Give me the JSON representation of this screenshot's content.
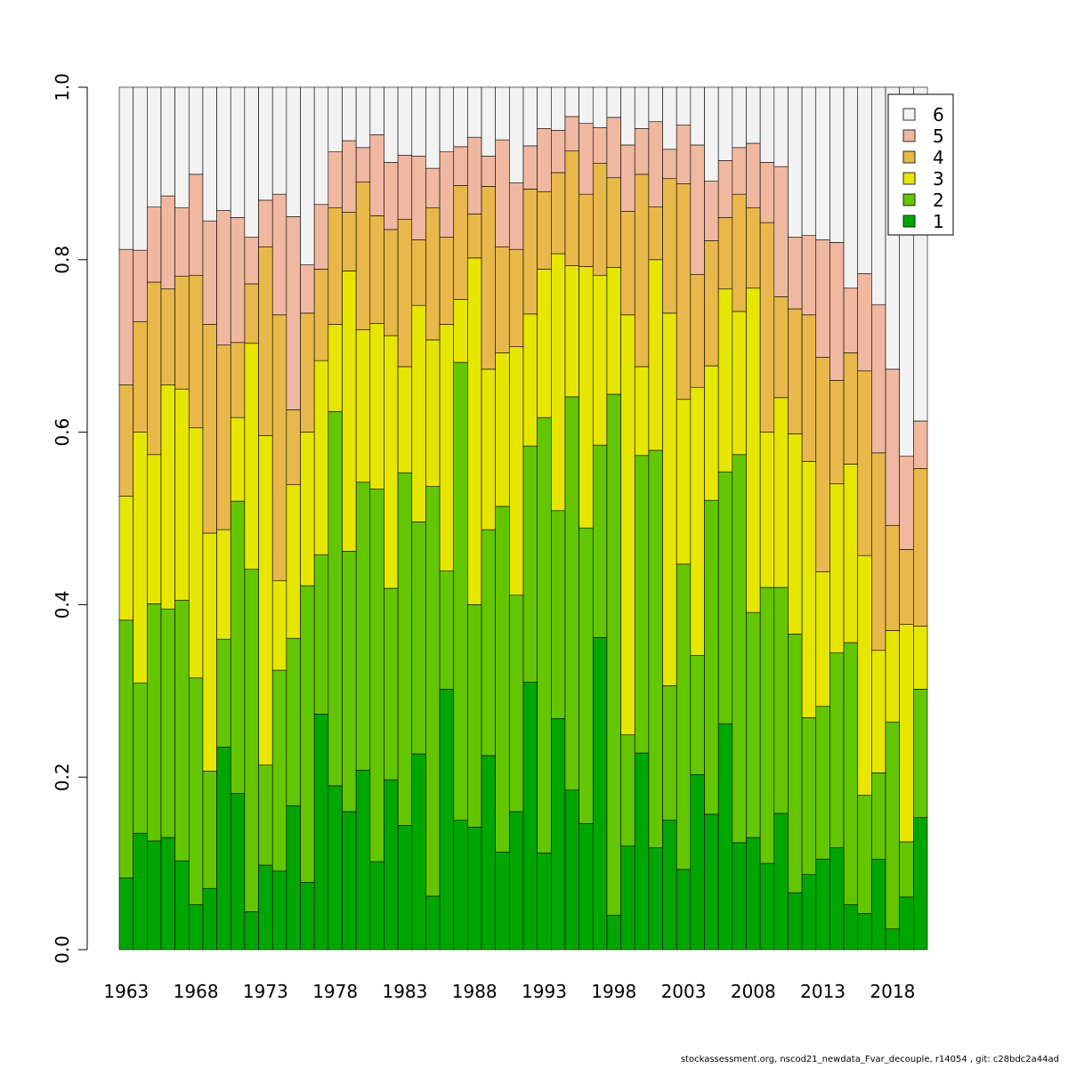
{
  "chart_data": {
    "type": "bar",
    "stacked": true,
    "title": "",
    "xlabel": "",
    "ylabel": "",
    "ylim": [
      0,
      1
    ],
    "y_ticks": [
      0.0,
      0.2,
      0.4,
      0.6,
      0.8,
      1.0
    ],
    "y_tick_labels": [
      "0.0",
      "0.2",
      "0.4",
      "0.6",
      "0.8",
      "1.0"
    ],
    "x_tick_labels": [
      "1963",
      "1968",
      "1973",
      "1978",
      "1983",
      "1988",
      "1993",
      "1998",
      "2003",
      "2008",
      "2013",
      "2018"
    ],
    "legend_position": "top-right",
    "legend_order": [
      "6",
      "5",
      "4",
      "3",
      "2",
      "1"
    ],
    "categories": [
      "1963",
      "1964",
      "1965",
      "1966",
      "1967",
      "1968",
      "1969",
      "1970",
      "1971",
      "1972",
      "1973",
      "1974",
      "1975",
      "1976",
      "1977",
      "1978",
      "1979",
      "1980",
      "1981",
      "1982",
      "1983",
      "1984",
      "1985",
      "1986",
      "1987",
      "1988",
      "1989",
      "1990",
      "1991",
      "1992",
      "1993",
      "1994",
      "1995",
      "1996",
      "1997",
      "1998",
      "1999",
      "2000",
      "2001",
      "2002",
      "2003",
      "2004",
      "2005",
      "2006",
      "2007",
      "2008",
      "2009",
      "2010",
      "2011",
      "2012",
      "2013",
      "2014",
      "2015",
      "2016",
      "2017",
      "2018",
      "2019",
      "2020"
    ],
    "series": [
      {
        "name": "1",
        "color": "#00a600",
        "values": [
          0.083,
          0.135,
          0.126,
          0.13,
          0.103,
          0.052,
          0.071,
          0.235,
          0.181,
          0.044,
          0.098,
          0.091,
          0.167,
          0.078,
          0.273,
          0.19,
          0.16,
          0.208,
          0.102,
          0.197,
          0.144,
          0.227,
          0.062,
          0.302,
          0.15,
          0.142,
          0.225,
          0.113,
          0.16,
          0.31,
          0.112,
          0.268,
          0.185,
          0.146,
          0.362,
          0.04,
          0.12,
          0.228,
          0.118,
          0.15,
          0.093,
          0.203,
          0.157,
          0.262,
          0.124,
          0.13,
          0.1,
          0.158,
          0.066,
          0.087,
          0.105,
          0.118,
          0.052,
          0.042,
          0.105,
          0.024,
          0.061,
          0.153
        ]
      },
      {
        "name": "2",
        "color": "#63c600",
        "values": [
          0.299,
          0.174,
          0.275,
          0.265,
          0.302,
          0.263,
          0.136,
          0.125,
          0.339,
          0.397,
          0.116,
          0.233,
          0.194,
          0.344,
          0.185,
          0.434,
          0.302,
          0.334,
          0.432,
          0.222,
          0.409,
          0.269,
          0.475,
          0.137,
          0.531,
          0.258,
          0.262,
          0.401,
          0.251,
          0.274,
          0.505,
          0.241,
          0.456,
          0.343,
          0.223,
          0.604,
          0.129,
          0.345,
          0.461,
          0.156,
          0.354,
          0.138,
          0.364,
          0.292,
          0.45,
          0.261,
          0.32,
          0.262,
          0.3,
          0.182,
          0.177,
          0.226,
          0.304,
          0.137,
          0.1,
          0.24,
          0.064,
          0.149
        ]
      },
      {
        "name": "3",
        "color": "#e6e600",
        "values": [
          0.144,
          0.291,
          0.173,
          0.26,
          0.245,
          0.29,
          0.276,
          0.127,
          0.097,
          0.262,
          0.382,
          0.104,
          0.178,
          0.178,
          0.225,
          0.101,
          0.325,
          0.177,
          0.192,
          0.293,
          0.123,
          0.251,
          0.17,
          0.286,
          0.073,
          0.402,
          0.186,
          0.178,
          0.288,
          0.153,
          0.172,
          0.298,
          0.152,
          0.303,
          0.197,
          0.147,
          0.487,
          0.103,
          0.221,
          0.432,
          0.191,
          0.311,
          0.156,
          0.212,
          0.166,
          0.376,
          0.18,
          0.22,
          0.232,
          0.297,
          0.156,
          0.196,
          0.207,
          0.278,
          0.142,
          0.106,
          0.252,
          0.073
        ]
      },
      {
        "name": "4",
        "color": "#e8b84a",
        "values": [
          0.129,
          0.128,
          0.2,
          0.111,
          0.131,
          0.177,
          0.242,
          0.214,
          0.087,
          0.069,
          0.219,
          0.308,
          0.087,
          0.138,
          0.106,
          0.135,
          0.068,
          0.171,
          0.125,
          0.123,
          0.171,
          0.076,
          0.153,
          0.101,
          0.132,
          0.051,
          0.212,
          0.123,
          0.113,
          0.145,
          0.09,
          0.094,
          0.133,
          0.084,
          0.13,
          0.104,
          0.12,
          0.223,
          0.061,
          0.156,
          0.25,
          0.131,
          0.145,
          0.083,
          0.136,
          0.093,
          0.243,
          0.117,
          0.145,
          0.17,
          0.249,
          0.12,
          0.129,
          0.214,
          0.229,
          0.122,
          0.087,
          0.183
        ]
      },
      {
        "name": "5",
        "color": "#f0b8a0",
        "values": [
          0.157,
          0.083,
          0.087,
          0.108,
          0.079,
          0.117,
          0.12,
          0.156,
          0.145,
          0.054,
          0.054,
          0.14,
          0.224,
          0.056,
          0.075,
          0.065,
          0.083,
          0.04,
          0.094,
          0.078,
          0.074,
          0.097,
          0.046,
          0.099,
          0.045,
          0.089,
          0.035,
          0.124,
          0.077,
          0.05,
          0.073,
          0.049,
          0.04,
          0.082,
          0.041,
          0.07,
          0.077,
          0.053,
          0.099,
          0.034,
          0.068,
          0.15,
          0.069,
          0.066,
          0.054,
          0.075,
          0.07,
          0.151,
          0.083,
          0.092,
          0.136,
          0.16,
          0.075,
          0.113,
          0.172,
          0.181,
          0.108,
          0.055
        ]
      },
      {
        "name": "6",
        "color": "#f2f2f2",
        "values": [
          0.188,
          0.189,
          0.139,
          0.126,
          0.14,
          0.101,
          0.155,
          0.143,
          0.151,
          0.174,
          0.131,
          0.124,
          0.15,
          0.206,
          0.136,
          0.075,
          0.062,
          0.07,
          0.055,
          0.087,
          0.079,
          0.08,
          0.094,
          0.075,
          0.069,
          0.058,
          0.08,
          0.061,
          0.111,
          0.068,
          0.048,
          0.05,
          0.034,
          0.042,
          0.047,
          0.035,
          0.067,
          0.048,
          0.04,
          0.072,
          0.044,
          0.067,
          0.109,
          0.085,
          0.07,
          0.065,
          0.087,
          0.092,
          0.174,
          0.172,
          0.177,
          0.18,
          0.233,
          0.216,
          0.252,
          0.327,
          0.428,
          0.387
        ]
      }
    ]
  },
  "footer": "stockassessment.org, nscod21_newdata_Fvar_decouple, r14054 , git: c28bdc2a44ad"
}
